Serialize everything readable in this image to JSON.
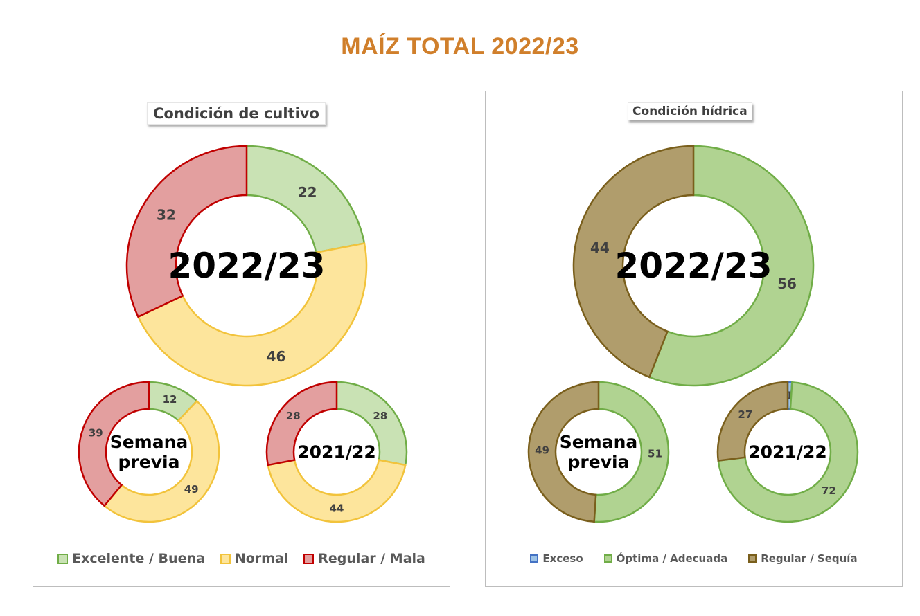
{
  "title": "MAÍZ TOTAL 2022/23",
  "chart_data": [
    {
      "type": "pie",
      "variant": "donut",
      "title": "Condición de cultivo",
      "categories": [
        "Excelente / Buena",
        "Normal",
        "Regular / Mala"
      ],
      "colors": {
        "fill": [
          "#c9e2b4",
          "#fde59c",
          "#e39f9f"
        ],
        "stroke": [
          "#70ad47",
          "#f2c33b",
          "#c00000"
        ]
      },
      "legend_position": "bottom",
      "series": [
        {
          "name": "2022/23",
          "values": [
            22,
            46,
            32
          ]
        },
        {
          "name": "Semana previa",
          "values": [
            12,
            49,
            39
          ]
        },
        {
          "name": "2021/22",
          "values": [
            28,
            44,
            28
          ]
        }
      ]
    },
    {
      "type": "pie",
      "variant": "donut",
      "title": "Condición hídrica",
      "categories": [
        "Exceso",
        "Óptima / Adecuada",
        "Regular / Sequía"
      ],
      "colors": {
        "fill": [
          "#9dc3e6",
          "#b0d391",
          "#b09d6c"
        ],
        "stroke": [
          "#4472c4",
          "#70ad47",
          "#7a5f1c"
        ]
      },
      "legend_position": "bottom",
      "series": [
        {
          "name": "2022/23",
          "values": [
            0,
            56,
            44
          ],
          "labels": [
            "-",
            "56",
            "44"
          ]
        },
        {
          "name": "Semana previa",
          "values": [
            0,
            51,
            49
          ],
          "labels": [
            "-",
            "51",
            "49"
          ]
        },
        {
          "name": "2021/22",
          "values": [
            1,
            72,
            27
          ],
          "labels": [
            "1",
            "72",
            "27"
          ]
        }
      ]
    }
  ]
}
